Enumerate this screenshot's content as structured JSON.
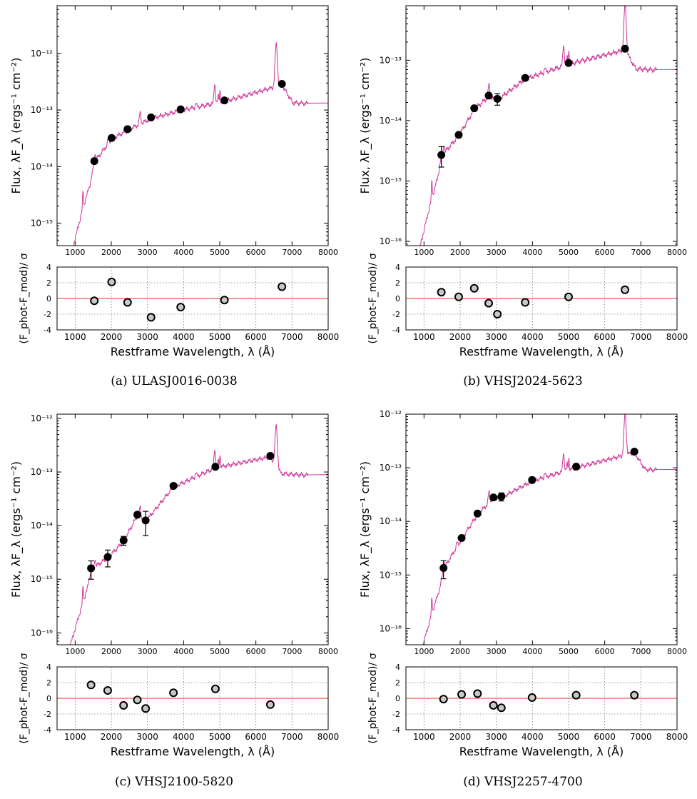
{
  "figure": {
    "subplot_captions": [
      "(a) ULASJ0016-0038",
      "(b) VHSJ2024-5623",
      "(c) VHSJ2100-5820",
      "(d) VHSJ2257-4700"
    ]
  },
  "common": {
    "top_ylabel": "Flux, λF_λ (ergs⁻¹ cm⁻²)",
    "bottom_ylabel": "(F_phot-F_mod)/ σ",
    "xlabel": "Restframe Wavelength, λ (Å)",
    "x_ticks": [
      1000,
      2000,
      3000,
      4000,
      5000,
      6000,
      7000,
      8000
    ],
    "residual_ticks": [
      4,
      2,
      0,
      -2,
      -4
    ],
    "colors": {
      "model": "#cc3399",
      "photometry": "#000000",
      "residual_fill": "#c8c8c8",
      "zero_line": "#e03030",
      "grid": "#777777"
    }
  },
  "chart_data": [
    {
      "type": "scatter",
      "title": "(a) ULASJ0016-0038",
      "xlabel": "Restframe Wavelength, λ (Å)",
      "ylabel": "Flux, λF_λ (ergs⁻¹ cm⁻²)",
      "xlim": [
        500,
        8000
      ],
      "ylim": [
        4e-16,
        7e-12
      ],
      "yscale": "log",
      "ytick_labels": [
        "10⁻¹²",
        "10⁻¹³",
        "10⁻¹⁴",
        "10⁻¹⁵"
      ],
      "ytick_values": [
        1e-12,
        1e-13,
        1e-14,
        1e-15
      ],
      "photometry": {
        "x": [
          1530,
          2010,
          2450,
          3100,
          3920,
          5130,
          6720
        ],
        "y": [
          1.25e-14,
          3.2e-14,
          4.6e-14,
          7.4e-14,
          1.03e-13,
          1.48e-13,
          2.9e-13
        ],
        "yerr": [
          0,
          0,
          0,
          0,
          0,
          0,
          0
        ]
      },
      "residuals": {
        "x": [
          1530,
          2010,
          2450,
          3100,
          3920,
          5130,
          6720
        ],
        "y": [
          -0.3,
          2.1,
          -0.5,
          -2.4,
          -1.1,
          -0.2,
          1.5
        ],
        "ylim": [
          -4,
          4
        ]
      }
    },
    {
      "type": "scatter",
      "title": "(b) VHSJ2024-5623",
      "xlabel": "Restframe Wavelength, λ (Å)",
      "ylabel": "Flux, λF_λ (ergs⁻¹ cm⁻²)",
      "xlim": [
        500,
        8000
      ],
      "ylim": [
        8.5e-17,
        8e-13
      ],
      "yscale": "log",
      "ytick_labels": [
        "10⁻¹³",
        "10⁻¹⁴",
        "10⁻¹⁵",
        "10⁻¹⁶"
      ],
      "ytick_values": [
        1e-13,
        1e-14,
        1e-15,
        1e-16
      ],
      "photometry": {
        "x": [
          1480,
          1960,
          2390,
          2790,
          3030,
          3800,
          5000,
          6560
        ],
        "y": [
          2.7e-15,
          5.8e-15,
          1.6e-14,
          2.6e-14,
          2.3e-14,
          5.1e-14,
          9e-14,
          1.55e-13
        ],
        "yerr": [
          1e-15,
          0,
          0,
          0,
          5e-15,
          0,
          0,
          0
        ]
      },
      "residuals": {
        "x": [
          1480,
          1960,
          2390,
          2790,
          3030,
          3800,
          5000,
          6560
        ],
        "y": [
          0.8,
          0.2,
          1.3,
          -0.6,
          -2.0,
          -0.5,
          0.2,
          1.1
        ],
        "ylim": [
          -4,
          4
        ]
      }
    },
    {
      "type": "scatter",
      "title": "(c) VHSJ2100-5820",
      "xlabel": "Restframe Wavelength, λ (Å)",
      "ylabel": "Flux, λF_λ (ergs⁻¹ cm⁻²)",
      "xlim": [
        500,
        8000
      ],
      "ylim": [
        6e-17,
        1.2e-12
      ],
      "yscale": "log",
      "ytick_labels": [
        "10⁻¹²",
        "10⁻¹³",
        "10⁻¹⁴",
        "10⁻¹⁵",
        "10⁻¹⁶"
      ],
      "ytick_values": [
        1e-12,
        1e-13,
        1e-14,
        1e-15,
        1e-16
      ],
      "photometry": {
        "x": [
          1440,
          1900,
          2340,
          2720,
          2950,
          3720,
          4880,
          6400
        ],
        "y": [
          1.6e-15,
          2.6e-15,
          5.3e-15,
          1.6e-14,
          1.25e-14,
          5.5e-14,
          1.25e-13,
          2e-13
        ],
        "yerr": [
          6e-16,
          9e-16,
          1e-15,
          0,
          6e-15,
          0,
          0,
          0
        ]
      },
      "residuals": {
        "x": [
          1440,
          1900,
          2340,
          2720,
          2950,
          3720,
          4880,
          6400
        ],
        "y": [
          1.7,
          1.0,
          -0.9,
          -0.2,
          -1.3,
          0.7,
          1.2,
          -0.8
        ],
        "ylim": [
          -4,
          4
        ]
      }
    },
    {
      "type": "scatter",
      "title": "(d) VHSJ2257-4700",
      "xlabel": "Restframe Wavelength, λ (Å)",
      "ylabel": "Flux, λF_λ (ergs⁻¹ cm⁻²)",
      "xlim": [
        500,
        8000
      ],
      "ylim": [
        5e-17,
        1e-12
      ],
      "yscale": "log",
      "ytick_labels": [
        "10⁻¹²",
        "10⁻¹³",
        "10⁻¹⁴",
        "10⁻¹⁵",
        "10⁻¹⁶"
      ],
      "ytick_values": [
        1e-12,
        1e-13,
        1e-14,
        1e-15,
        1e-16
      ],
      "photometry": {
        "x": [
          1540,
          2040,
          2480,
          2920,
          3140,
          3990,
          5210,
          6820
        ],
        "y": [
          1.35e-15,
          4.9e-15,
          1.4e-14,
          2.8e-14,
          2.9e-14,
          5.9e-14,
          1.05e-13,
          2e-13
        ],
        "yerr": [
          5e-16,
          0,
          0,
          0,
          5e-15,
          0,
          0,
          0
        ]
      },
      "residuals": {
        "x": [
          1540,
          2040,
          2480,
          2920,
          3140,
          3990,
          5210,
          6820
        ],
        "y": [
          -0.1,
          0.5,
          0.6,
          -0.9,
          -1.2,
          0.1,
          0.4,
          0.4
        ],
        "ylim": [
          -4,
          4
        ]
      }
    }
  ]
}
